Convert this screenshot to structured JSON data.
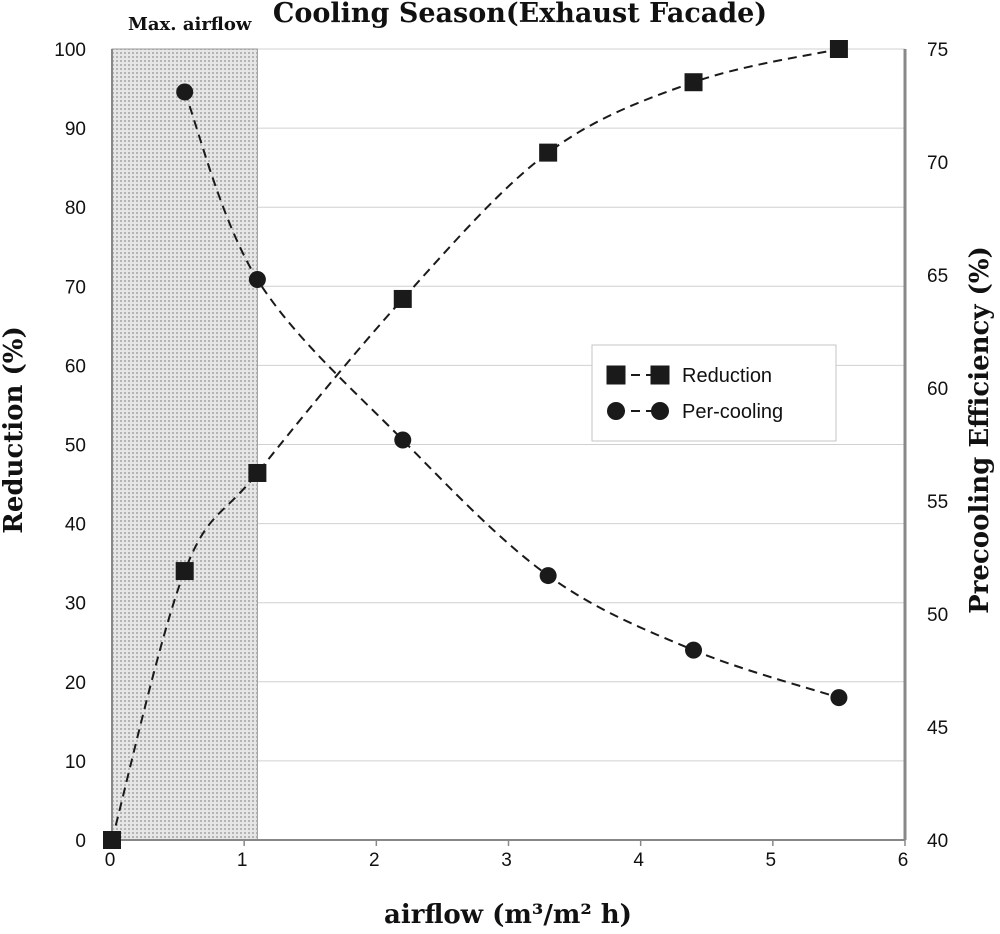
{
  "chart_data": {
    "type": "line",
    "title": "Cooling Season(Exhaust Facade)",
    "xlabel": "airflow (m³/m² h)",
    "ylabel": "Reduction (%)",
    "y2label": "Precooling Efficiency (%)",
    "xlim": [
      0,
      6
    ],
    "ylim": [
      0,
      100
    ],
    "y2lim": [
      40,
      75
    ],
    "x_ticks": [
      "0",
      "1",
      "2",
      "3",
      "4",
      "5",
      "6"
    ],
    "y_ticks": [
      "0",
      "10",
      "20",
      "30",
      "40",
      "50",
      "60",
      "70",
      "80",
      "90",
      "100"
    ],
    "y2_ticks": [
      "40",
      "45",
      "50",
      "55",
      "60",
      "65",
      "70",
      "75"
    ],
    "grid": "horizontal",
    "legend_position": "center-right",
    "annotation": {
      "label": "Max. airflow",
      "x_range": [
        0,
        1.1
      ]
    },
    "series": [
      {
        "name": "Reduction",
        "axis": "left",
        "marker": "square",
        "style": "dashed",
        "x": [
          0,
          0.55,
          1.1,
          2.2,
          3.3,
          4.4,
          5.5
        ],
        "values": [
          0,
          34,
          46.4,
          68.4,
          86.9,
          95.8,
          100
        ]
      },
      {
        "name": "Per-cooling",
        "axis": "right",
        "marker": "circle",
        "style": "dashed",
        "x": [
          0.55,
          1.1,
          2.2,
          3.3,
          4.4,
          5.5
        ],
        "values": [
          73.1,
          64.8,
          57.7,
          51.7,
          48.4,
          46.3
        ]
      }
    ]
  },
  "colors": {
    "series": "#1a1a1a",
    "grid": "#d0d0d0",
    "axis": "#888888",
    "shade": "#c8c8c8"
  }
}
